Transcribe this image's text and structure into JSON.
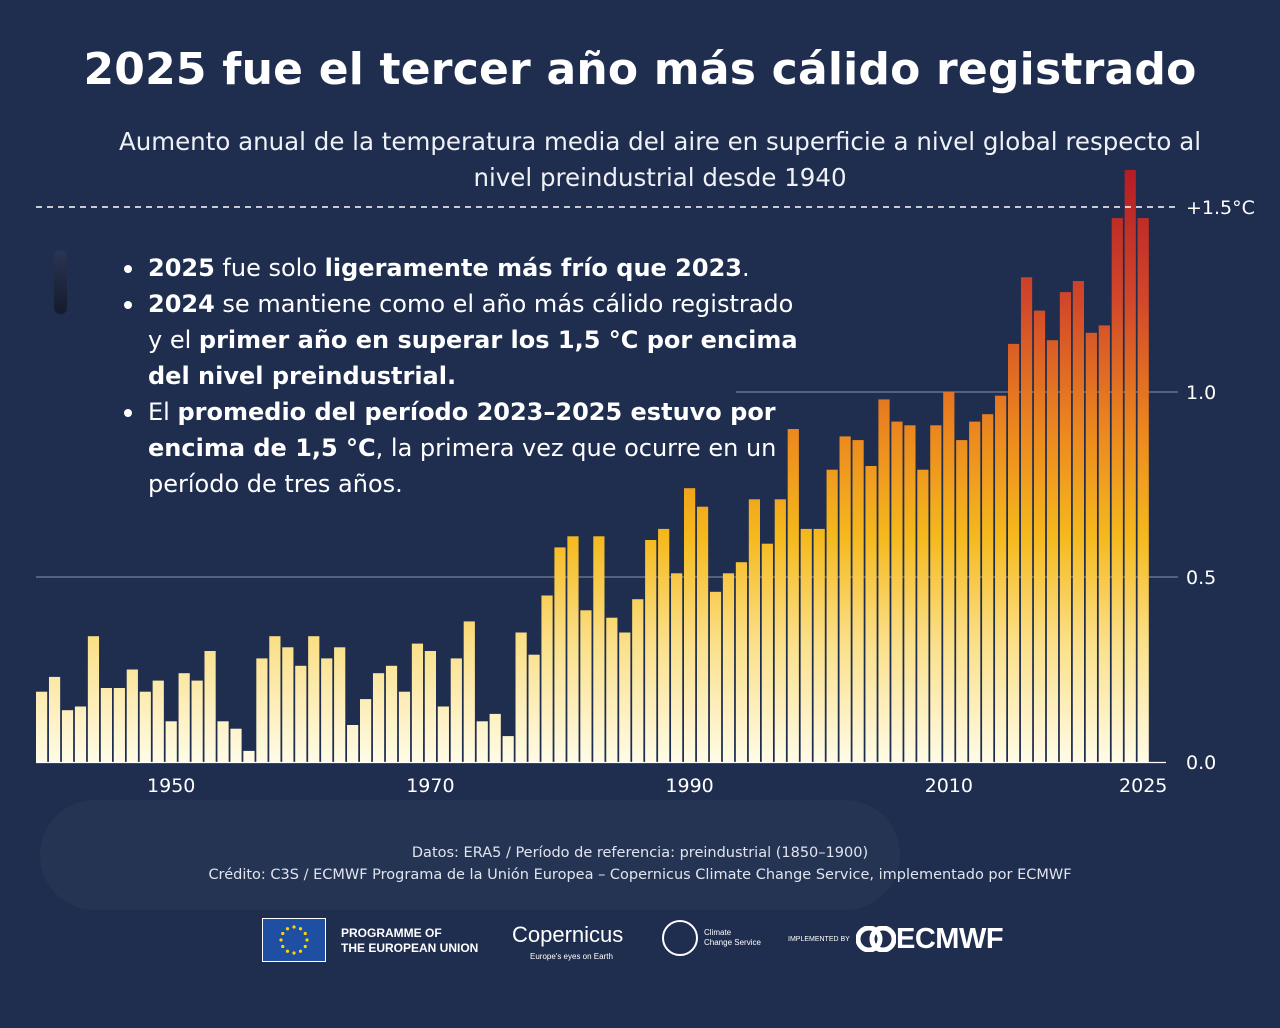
{
  "header": {
    "title": "2025 fue el tercer año más cálido registrado",
    "subtitle": "Aumento anual de la temperatura media del aire en superficie a nivel global respecto al nivel preindustrial desde 1940"
  },
  "bullets": [
    [
      {
        "t": "2025",
        "b": true
      },
      {
        "t": " fue solo ",
        "b": false
      },
      {
        "t": "ligeramente más frío que 2023",
        "b": true
      },
      {
        "t": ".",
        "b": false
      }
    ],
    [
      {
        "t": "2024",
        "b": true
      },
      {
        "t": " se mantiene como el año más cálido registrado y el ",
        "b": false
      },
      {
        "t": "primer año en superar los 1,5 °C por encima del nivel preindustrial.",
        "b": true
      }
    ],
    [
      {
        "t": "El ",
        "b": false
      },
      {
        "t": "promedio del período 2023–2025 estuvo por encima de 1,5 °C",
        "b": true
      },
      {
        "t": ", la primera vez que ocurre en un período de tres años.",
        "b": false
      }
    ]
  ],
  "chart_data": {
    "type": "bar",
    "x": [
      1940,
      1941,
      1942,
      1943,
      1944,
      1945,
      1946,
      1947,
      1948,
      1949,
      1950,
      1951,
      1952,
      1953,
      1954,
      1955,
      1956,
      1957,
      1958,
      1959,
      1960,
      1961,
      1962,
      1963,
      1964,
      1965,
      1966,
      1967,
      1968,
      1969,
      1970,
      1971,
      1972,
      1973,
      1974,
      1975,
      1976,
      1977,
      1978,
      1979,
      1980,
      1981,
      1982,
      1983,
      1984,
      1985,
      1986,
      1987,
      1988,
      1989,
      1990,
      1991,
      1992,
      1993,
      1994,
      1995,
      1996,
      1997,
      1998,
      1999,
      2000,
      2001,
      2002,
      2003,
      2004,
      2005,
      2006,
      2007,
      2008,
      2009,
      2010,
      2011,
      2012,
      2013,
      2014,
      2015,
      2016,
      2017,
      2018,
      2019,
      2020,
      2021,
      2022,
      2023,
      2024,
      2025
    ],
    "values": [
      0.19,
      0.23,
      0.14,
      0.15,
      0.34,
      0.2,
      0.2,
      0.25,
      0.19,
      0.22,
      0.11,
      0.24,
      0.22,
      0.3,
      0.11,
      0.09,
      0.03,
      0.28,
      0.34,
      0.31,
      0.26,
      0.34,
      0.28,
      0.31,
      0.1,
      0.17,
      0.24,
      0.26,
      0.19,
      0.32,
      0.3,
      0.15,
      0.28,
      0.38,
      0.11,
      0.13,
      0.07,
      0.35,
      0.29,
      0.45,
      0.58,
      0.61,
      0.41,
      0.61,
      0.39,
      0.35,
      0.44,
      0.6,
      0.63,
      0.51,
      0.74,
      0.69,
      0.46,
      0.51,
      0.54,
      0.71,
      0.59,
      0.71,
      0.9,
      0.63,
      0.63,
      0.79,
      0.88,
      0.87,
      0.8,
      0.98,
      0.92,
      0.91,
      0.79,
      0.91,
      1.0,
      0.87,
      0.92,
      0.94,
      0.99,
      1.13,
      1.31,
      1.22,
      1.14,
      1.27,
      1.3,
      1.16,
      1.18,
      1.47,
      1.6,
      1.47
    ],
    "ylim": [
      0,
      1.6
    ],
    "yticks": [
      0.0,
      0.5,
      1.0
    ],
    "ytick_labels": [
      "0.0",
      "0.5",
      "1.0"
    ],
    "xticks": [
      1950,
      1970,
      1990,
      2010,
      2025
    ],
    "xtick_labels": [
      "1950",
      "1970",
      "1990",
      "2010",
      "2025"
    ],
    "threshold": {
      "value": 1.5,
      "label": "+1.5°C",
      "style": "dashed"
    },
    "grid": "horizontal",
    "colors": {
      "low": "#fffbe6",
      "mid": "#f5b91d",
      "high": "#b41d25"
    }
  },
  "footer": {
    "line1": "Datos: ERA5 /  Período de referencia: preindustrial (1850–1900)",
    "line2": "Crédito: C3S / ECMWF  Programa de la Unión Europea – Copernicus Climate Change Service, implementado por ECMWF"
  },
  "logos": {
    "eu_line1": "PROGRAMME OF",
    "eu_line2": "THE EUROPEAN UNION",
    "copernicus": "Copernicus",
    "copernicus_tag": "Europe's eyes on Earth",
    "ccs_line1": "Climate",
    "ccs_line2": "Change Service",
    "implemented_by": "IMPLEMENTED BY",
    "ecmwf": "ECMWF"
  }
}
